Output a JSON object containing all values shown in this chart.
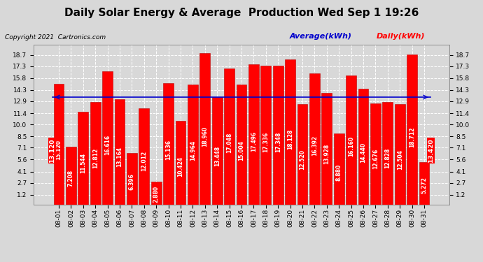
{
  "title": "Daily Solar Energy & Average  Production Wed Sep 1 19:26",
  "copyright": "Copyright 2021  Cartronics.com",
  "legend_avg": "Average(kWh)",
  "legend_daily": "Daily(kWh)",
  "average_value": 13.42,
  "average_label_left": "• 13.120",
  "average_label_right": "13.420 ↓",
  "categories": [
    "08-01",
    "08-02",
    "08-03",
    "08-04",
    "08-05",
    "08-06",
    "08-07",
    "08-08",
    "08-09",
    "08-10",
    "08-11",
    "08-12",
    "08-13",
    "08-14",
    "08-15",
    "08-16",
    "08-17",
    "08-18",
    "08-19",
    "08-20",
    "08-21",
    "08-22",
    "08-23",
    "08-24",
    "08-25",
    "08-26",
    "08-27",
    "08-28",
    "08-29",
    "08-30",
    "08-31"
  ],
  "values": [
    15.12,
    7.208,
    11.544,
    12.812,
    16.616,
    13.164,
    6.396,
    12.012,
    2.88,
    15.136,
    10.424,
    14.964,
    18.96,
    13.448,
    17.048,
    15.004,
    17.496,
    17.336,
    17.348,
    18.128,
    12.52,
    16.392,
    13.928,
    8.88,
    16.16,
    14.44,
    12.676,
    12.828,
    12.504,
    18.712,
    5.272
  ],
  "bar_color": "#ff0000",
  "bar_edge_color": "#bb0000",
  "avg_line_color": "#0000cc",
  "background_color": "#d8d8d8",
  "grid_color": "#ffffff",
  "yticks": [
    1.2,
    2.7,
    4.1,
    5.6,
    7.1,
    8.5,
    10.0,
    11.4,
    12.9,
    14.3,
    15.8,
    17.3,
    18.7
  ],
  "ylim": [
    0.0,
    20.0
  ],
  "title_fontsize": 11,
  "tick_fontsize": 6.5,
  "value_fontsize": 5.5,
  "copyright_fontsize": 6.5,
  "legend_fontsize": 8
}
